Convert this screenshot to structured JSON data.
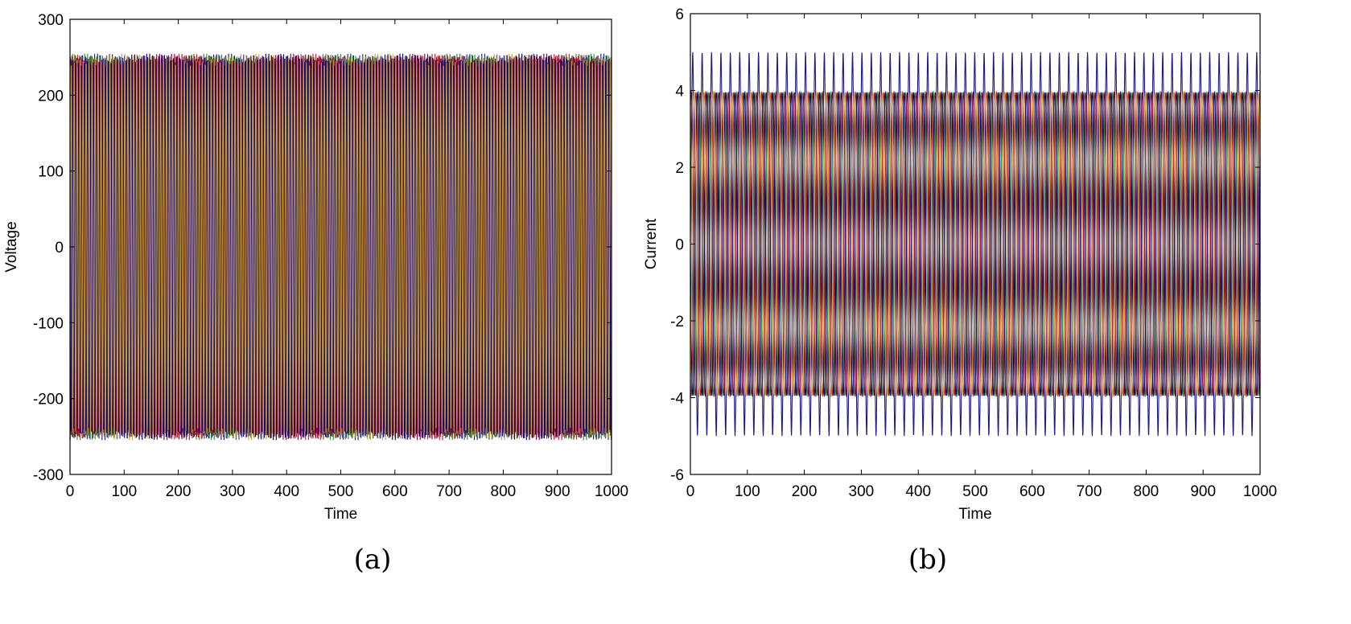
{
  "captions": {
    "left": "(a)",
    "right": "(b)"
  },
  "chart_data": [
    {
      "type": "line",
      "title": "",
      "xlabel": "Time",
      "ylabel": "Voltage",
      "xlim": [
        0,
        1000
      ],
      "ylim": [
        -300,
        300
      ],
      "xticks": [
        0,
        100,
        200,
        300,
        400,
        500,
        600,
        700,
        800,
        900,
        1000
      ],
      "yticks": [
        -300,
        -200,
        -100,
        0,
        100,
        200,
        300
      ],
      "grid": false,
      "signal": {
        "kind": "three-phase-sine",
        "amplitude": 250,
        "period": 5.5,
        "phases_deg": [
          0,
          120,
          240,
          60,
          180,
          300
        ]
      },
      "series_colors": [
        "#1a1a8c",
        "#2e8b2e",
        "#b22222",
        "#800040",
        "#000066",
        "#c8a040"
      ]
    },
    {
      "type": "line",
      "title": "",
      "xlabel": "Time",
      "ylabel": "Current",
      "xlim": [
        0,
        1000
      ],
      "ylim": [
        -6,
        6
      ],
      "xticks": [
        0,
        100,
        200,
        300,
        400,
        500,
        600,
        700,
        800,
        900,
        1000
      ],
      "yticks": [
        -6,
        -4,
        -2,
        0,
        2,
        4,
        6
      ],
      "grid": false,
      "signal": {
        "kind": "three-phase-current",
        "amplitude": 4.1,
        "peak": 5.0,
        "period": 16.5,
        "phases_deg": [
          0,
          120,
          240,
          60,
          180,
          300
        ]
      },
      "series_colors": [
        "#1a1a8c",
        "#2e8b2e",
        "#b22222",
        "#800040",
        "#000066",
        "#c8a040"
      ]
    }
  ]
}
